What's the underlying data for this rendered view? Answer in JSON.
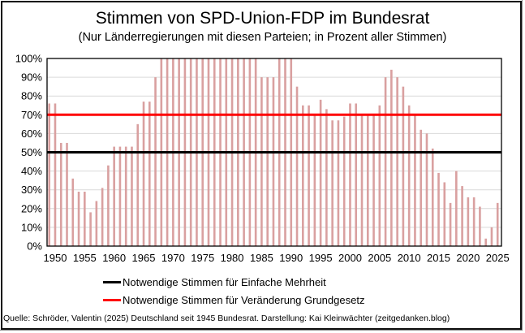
{
  "chart_data": {
    "type": "bar",
    "title": "Stimmen von SPD-Union-FDP im Bundesrat",
    "subtitle": "(Nur Länderregierungen mit diesen Parteien; in Prozent aller Stimmen)",
    "xlabel": "",
    "ylabel": "",
    "ylim": [
      0,
      100
    ],
    "grid": true,
    "yticks": [
      "0%",
      "10%",
      "20%",
      "30%",
      "40%",
      "50%",
      "60%",
      "70%",
      "80%",
      "90%",
      "100%"
    ],
    "ytick_values": [
      0,
      10,
      20,
      30,
      40,
      50,
      60,
      70,
      80,
      90,
      100
    ],
    "xticks": [
      "1950",
      "1955",
      "1960",
      "1965",
      "1970",
      "1975",
      "1980",
      "1985",
      "1990",
      "1995",
      "2000",
      "2005",
      "2010",
      "2015",
      "2020",
      "2025"
    ],
    "xtick_values": [
      1950,
      1955,
      1960,
      1965,
      1970,
      1975,
      1980,
      1985,
      1990,
      1995,
      2000,
      2005,
      2010,
      2015,
      2020,
      2025
    ],
    "x_start": 1949,
    "x": [
      1949,
      1950,
      1951,
      1952,
      1953,
      1954,
      1955,
      1956,
      1957,
      1958,
      1959,
      1960,
      1961,
      1962,
      1963,
      1964,
      1965,
      1966,
      1967,
      1968,
      1969,
      1970,
      1971,
      1972,
      1973,
      1974,
      1975,
      1976,
      1977,
      1978,
      1979,
      1980,
      1981,
      1982,
      1983,
      1984,
      1985,
      1986,
      1987,
      1988,
      1989,
      1990,
      1991,
      1992,
      1993,
      1994,
      1995,
      1996,
      1997,
      1998,
      1999,
      2000,
      2001,
      2002,
      2003,
      2004,
      2005,
      2006,
      2007,
      2008,
      2009,
      2010,
      2011,
      2012,
      2013,
      2014,
      2015,
      2016,
      2017,
      2018,
      2019,
      2020,
      2021,
      2022,
      2023,
      2024,
      2025
    ],
    "values": [
      76,
      76,
      55,
      55,
      36,
      29,
      29,
      18,
      24,
      31,
      43,
      53,
      53,
      53,
      53,
      65,
      77,
      77,
      90,
      100,
      100,
      100,
      100,
      100,
      100,
      100,
      100,
      100,
      100,
      100,
      100,
      100,
      100,
      100,
      100,
      100,
      90,
      90,
      90,
      100,
      100,
      100,
      85,
      75,
      75,
      70,
      78,
      73,
      67,
      67,
      69,
      76,
      76,
      70,
      70,
      70,
      75,
      90,
      94,
      90,
      85,
      75,
      70,
      62,
      60,
      52,
      39,
      34,
      23,
      40,
      32,
      26,
      26,
      21,
      4,
      10,
      23
    ],
    "bar_color": "#d9a0a0",
    "reference_lines": [
      {
        "name": "Notwendige Stimmen für Einfache Mehrheit",
        "value": 50,
        "color": "#000000"
      },
      {
        "name": "Notwendige Stimmen für Veränderung Grundgesetz",
        "value": 70,
        "color": "#ff0000"
      }
    ],
    "legend_position": "bottom-center",
    "source": "Quelle: Schröder, Valentin (2025)  Deutschland seit 1945 Bundesrat. Darstellung: Kai Kleinwächter (zeitgedanken.blog)"
  }
}
